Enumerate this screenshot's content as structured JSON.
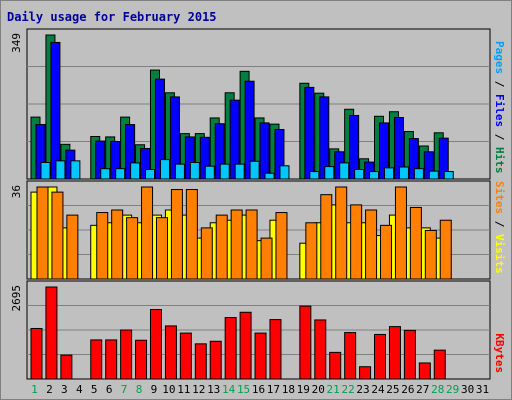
{
  "chart_data": {
    "type": "bar",
    "title": "Daily usage for February 2015",
    "days": [
      "1",
      "2",
      "3",
      "4",
      "5",
      "6",
      "7",
      "8",
      "9",
      "10",
      "11",
      "12",
      "13",
      "14",
      "15",
      "16",
      "17",
      "18",
      "19",
      "20",
      "21",
      "22",
      "23",
      "24",
      "25",
      "26",
      "27",
      "28",
      "29",
      "30",
      "31"
    ],
    "weekend_days": [
      "1",
      "7",
      "8",
      "14",
      "15",
      "21",
      "22",
      "28",
      "29"
    ],
    "panels": [
      {
        "id": "hits",
        "max_label": "349",
        "ymax": 349,
        "label_parts": [
          {
            "text": "Pages",
            "color": "#00a0ff"
          },
          {
            "text": " / ",
            "color": "#000000"
          },
          {
            "text": "Files",
            "color": "#0000ff"
          },
          {
            "text": " / ",
            "color": "#000000"
          },
          {
            "text": "Hits",
            "color": "#008040"
          }
        ],
        "series": [
          {
            "name": "Hits",
            "color": "#008040",
            "values": [
              150,
              349,
              84,
              0,
              103,
              102,
              150,
              83,
              264,
              209,
              110,
              110,
              148,
              209,
              261,
              148,
              133,
              0,
              232,
              208,
              73,
              169,
              49,
              152,
              163,
              115,
              80,
              112,
              0,
              0,
              0
            ]
          },
          {
            "name": "Files",
            "color": "#0000ff",
            "values": [
              132,
              331,
              70,
              0,
              92,
              91,
              132,
              74,
              242,
              199,
              102,
              101,
              134,
              191,
              237,
              136,
              120,
              0,
              222,
              199,
              66,
              154,
              41,
              136,
              149,
              98,
              66,
              99,
              0,
              0,
              0
            ]
          },
          {
            "name": "Pages",
            "color": "#00c8ff",
            "values": [
              40,
              44,
              44,
              0,
              25,
              25,
              39,
              23,
              47,
              36,
              40,
              31,
              36,
              36,
              43,
              14,
              32,
              0,
              18,
              30,
              39,
              23,
              18,
              27,
              29,
              25,
              19,
              18,
              0,
              0,
              0
            ]
          }
        ]
      },
      {
        "id": "visits",
        "max_label": "36",
        "ymax": 36,
        "label_parts": [
          {
            "text": "Sites",
            "color": "#ff8000"
          },
          {
            "text": " / ",
            "color": "#000000"
          },
          {
            "text": "Visits",
            "color": "#ffff00"
          }
        ],
        "series": [
          {
            "name": "Visits",
            "color": "#ffff00",
            "values": [
              34,
              36,
              20,
              0,
              21,
              22,
              25,
              22,
              25,
              27,
              25,
              16,
              22,
              23,
              25,
              15,
              23,
              0,
              14,
              22,
              29,
              22,
              22,
              17,
              25,
              20,
              20,
              16,
              0,
              0,
              0
            ]
          },
          {
            "name": "Sites",
            "color": "#ff8000",
            "values": [
              36,
              34,
              25,
              0,
              26,
              27,
              24,
              36,
              24,
              35,
              35,
              20,
              25,
              27,
              27,
              16,
              26,
              0,
              22,
              33,
              36,
              29,
              27,
              21,
              36,
              28,
              19,
              23,
              0,
              0,
              0
            ]
          }
        ]
      },
      {
        "id": "kbytes",
        "max_label": "2695",
        "ymax": 2695,
        "label_parts": [
          {
            "text": "KBytes",
            "color": "#ff0000"
          }
        ],
        "series": [
          {
            "name": "KBytes",
            "color": "#ff0000",
            "values": [
              1480,
              2695,
              700,
              0,
              1145,
              1145,
              1435,
              1135,
              2035,
              1555,
              1345,
              1030,
              1105,
              1800,
              1955,
              1345,
              1740,
              0,
              2135,
              1730,
              780,
              1360,
              360,
              1305,
              1535,
              1425,
              470,
              845,
              0,
              0,
              0
            ]
          }
        ]
      }
    ]
  }
}
